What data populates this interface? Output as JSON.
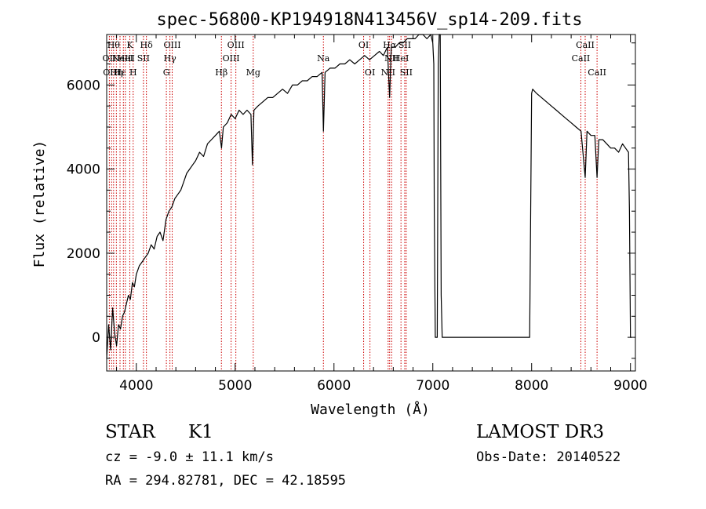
{
  "chart_data": {
    "type": "line",
    "title": "spec-56800-KP194918N413456V_sp14-209.fits",
    "xlabel": "Wavelength (Å)",
    "ylabel": "Flux (relative)",
    "xlim": [
      3700,
      9050
    ],
    "ylim": [
      -800,
      7200
    ],
    "xticks": [
      4000,
      5000,
      6000,
      7000,
      8000,
      9000
    ],
    "yticks": [
      0,
      2000,
      4000,
      6000
    ],
    "xtick_labels": [
      "4000",
      "5000",
      "6000",
      "7000",
      "8000",
      "9000"
    ],
    "ytick_labels": [
      "0",
      "2000",
      "4000",
      "6000"
    ],
    "grid": false,
    "series": [
      {
        "name": "flux",
        "color": "#000000",
        "x": [
          3700,
          3720,
          3740,
          3760,
          3780,
          3800,
          3820,
          3840,
          3860,
          3880,
          3900,
          3920,
          3940,
          3960,
          3980,
          4000,
          4030,
          4060,
          4090,
          4120,
          4150,
          4180,
          4210,
          4240,
          4270,
          4300,
          4330,
          4360,
          4390,
          4420,
          4450,
          4480,
          4510,
          4540,
          4570,
          4600,
          4640,
          4680,
          4720,
          4760,
          4800,
          4840,
          4862,
          4880,
          4920,
          4960,
          5000,
          5040,
          5080,
          5120,
          5160,
          5175,
          5190,
          5230,
          5280,
          5330,
          5380,
          5430,
          5480,
          5530,
          5580,
          5630,
          5680,
          5730,
          5780,
          5830,
          5880,
          5893,
          5910,
          5960,
          6010,
          6060,
          6110,
          6160,
          6210,
          6260,
          6310,
          6360,
          6410,
          6460,
          6500,
          6540,
          6563,
          6580,
          6620,
          6660,
          6700,
          6740,
          6780,
          6820,
          6860,
          6900,
          6940,
          6980,
          7000,
          7010,
          7015,
          7025,
          7035,
          7045,
          7055,
          7065,
          7075,
          7085,
          7095,
          7110,
          7200,
          7300,
          7400,
          7500,
          7600,
          7700,
          7800,
          7900,
          7980,
          7990,
          8000,
          8010,
          8050,
          8100,
          8150,
          8200,
          8250,
          8300,
          8350,
          8400,
          8450,
          8500,
          8542,
          8560,
          8600,
          8640,
          8662,
          8680,
          8720,
          8760,
          8800,
          8840,
          8880,
          8920,
          8950,
          8980,
          8990,
          9000,
          9010
        ],
        "y": [
          -500,
          300,
          -300,
          700,
          100,
          -200,
          300,
          200,
          500,
          600,
          800,
          1000,
          900,
          1300,
          1200,
          1500,
          1700,
          1800,
          1900,
          2000,
          2200,
          2100,
          2400,
          2500,
          2300,
          2800,
          3000,
          3100,
          3300,
          3400,
          3500,
          3700,
          3900,
          4000,
          4100,
          4200,
          4400,
          4300,
          4600,
          4700,
          4800,
          4900,
          4500,
          5000,
          5100,
          5300,
          5200,
          5400,
          5300,
          5400,
          5300,
          4100,
          5400,
          5500,
          5600,
          5700,
          5700,
          5800,
          5900,
          5800,
          6000,
          6000,
          6100,
          6100,
          6200,
          6200,
          6300,
          4900,
          6300,
          6400,
          6400,
          6500,
          6500,
          6600,
          6500,
          6600,
          6700,
          6600,
          6700,
          6800,
          6700,
          6900,
          5700,
          6900,
          6900,
          7000,
          7000,
          7100,
          7100,
          7100,
          7200,
          7200,
          7100,
          7200,
          7000,
          6500,
          3000,
          0,
          0,
          0,
          6500,
          7300,
          7300,
          1000,
          0,
          0,
          0,
          0,
          0,
          0,
          0,
          0,
          0,
          0,
          0,
          3000,
          5800,
          5900,
          5800,
          5700,
          5600,
          5500,
          5400,
          5300,
          5200,
          5100,
          5000,
          4900,
          3800,
          4900,
          4800,
          4800,
          3800,
          4700,
          4700,
          4600,
          4500,
          4500,
          4400,
          4600,
          4500,
          4400,
          3000,
          0,
          0
        ]
      }
    ],
    "lines": {
      "color": "#cc0000",
      "items": [
        {
          "x": 3727,
          "label": "OII",
          "row": 2
        },
        {
          "x": 3750,
          "label": "OIII",
          "row": 3
        },
        {
          "x": 3770,
          "label": "Hθ",
          "row": 1
        },
        {
          "x": 3798,
          "label": "Hη",
          "row": 3
        },
        {
          "x": 3835,
          "label": "Hε",
          "row": 3
        },
        {
          "x": 3869,
          "label": "NeIII",
          "row": 2
        },
        {
          "x": 3889,
          "label": "HeI",
          "row": 2
        },
        {
          "x": 3934,
          "label": "K",
          "row": 1
        },
        {
          "x": 3968,
          "label": "H",
          "row": 3
        },
        {
          "x": 4072,
          "label": "SII",
          "row": 2
        },
        {
          "x": 4102,
          "label": "Hδ",
          "row": 1
        },
        {
          "x": 4304,
          "label": "G",
          "row": 3
        },
        {
          "x": 4340,
          "label": "Hγ",
          "row": 2
        },
        {
          "x": 4363,
          "label": "OIII",
          "row": 1
        },
        {
          "x": 4861,
          "label": "Hβ",
          "row": 3
        },
        {
          "x": 4959,
          "label": "OIII",
          "row": 2
        },
        {
          "x": 5007,
          "label": "OIII",
          "row": 1
        },
        {
          "x": 5183,
          "label": "Mg",
          "row": 3
        },
        {
          "x": 5893,
          "label": "Na",
          "row": 2
        },
        {
          "x": 6300,
          "label": "OI",
          "row": 1
        },
        {
          "x": 6364,
          "label": "OI",
          "row": 3
        },
        {
          "x": 6548,
          "label": "NII",
          "row": 3
        },
        {
          "x": 6563,
          "label": "Hα",
          "row": 1
        },
        {
          "x": 6583,
          "label": "NII",
          "row": 2
        },
        {
          "x": 6678,
          "label": "HeI",
          "row": 2
        },
        {
          "x": 6716,
          "label": "SII",
          "row": 1
        },
        {
          "x": 6731,
          "label": "SII",
          "row": 3
        },
        {
          "x": 8498,
          "label": "CaII",
          "row": 2
        },
        {
          "x": 8542,
          "label": "CaII",
          "row": 1
        },
        {
          "x": 8662,
          "label": "CaII",
          "row": 3
        }
      ]
    }
  },
  "info": {
    "class_label": "STAR",
    "subclass": "K1",
    "survey": "LAMOST DR3",
    "cz": "cz = -9.0 ± 11.1 km/s",
    "obs_date": "Obs-Date: 20140522",
    "coords": "RA = 294.82781, DEC =  42.18595"
  }
}
